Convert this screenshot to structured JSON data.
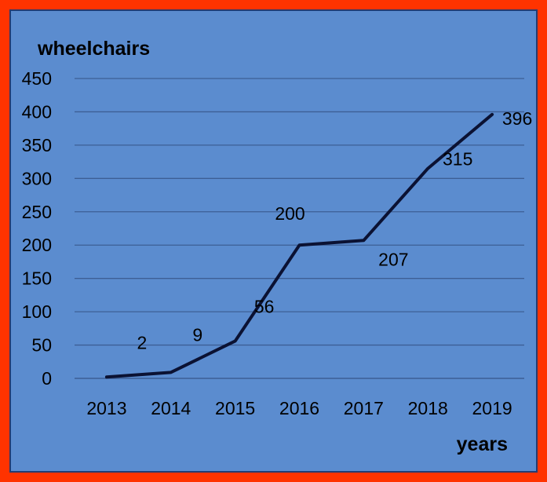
{
  "chart_data": {
    "type": "line",
    "ylabel": "wheelchairs",
    "xlabel": "years",
    "categories": [
      "2013",
      "2014",
      "2015",
      "2016",
      "2017",
      "2018",
      "2019"
    ],
    "series": [
      {
        "values": [
          2,
          9,
          56,
          200,
          207,
          315,
          396
        ]
      }
    ],
    "data_labels": [
      "2",
      "9",
      "56",
      "200",
      "207",
      "315",
      "396"
    ],
    "yticks": [
      "0",
      "50",
      "100",
      "150",
      "200",
      "250",
      "300",
      "350",
      "400",
      "450"
    ],
    "ylim": [
      0,
      450
    ],
    "grid": true,
    "legend": "none"
  },
  "colors": {
    "border": "#ff3300",
    "background": "#5b8ccf",
    "line": "#0b1233"
  }
}
